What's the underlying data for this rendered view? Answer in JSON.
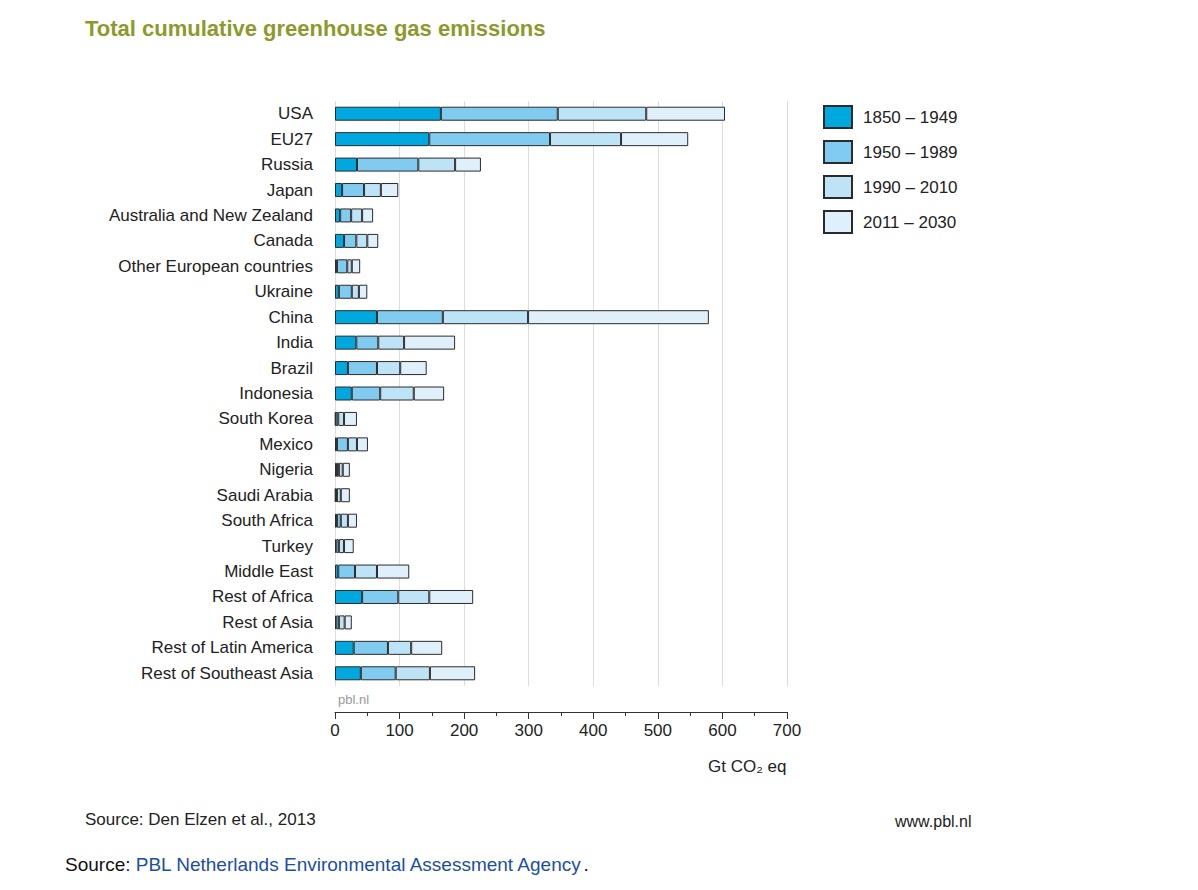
{
  "chart_data": {
    "type": "bar",
    "title": "Total cumulative greenhouse gas emissions",
    "x_label": "Gt CO₂ eq",
    "source": "Source: Den Elzen et al., 2013",
    "website": "www.pbl.nl",
    "watermark": "pbl.nl",
    "footer": {
      "prefix": "Source:",
      "link": "PBL Netherlands Environmental Assessment Agency",
      "suffix": "."
    },
    "orientation": "horizontal",
    "stacked": true,
    "grid": true,
    "legend": "right",
    "xlim": [
      0,
      700
    ],
    "xticks": [
      0,
      100,
      200,
      300,
      400,
      500,
      600,
      700
    ],
    "categories": [
      "USA",
      "EU27",
      "Russia",
      "Japan",
      "Australia and New Zealand",
      "Canada",
      "Other European countries",
      "Ukraine",
      "China",
      "India",
      "Brazil",
      "Indonesia",
      "South Korea",
      "Mexico",
      "Nigeria",
      "Saudi Arabia",
      "South Africa",
      "Turkey",
      "Middle East",
      "Rest of Africa",
      "Rest of Asia",
      "Rest of Latin America",
      "Rest of Southeast Asia"
    ],
    "series": [
      {
        "name": "1850 – 1949",
        "color": "#00a8e0",
        "values": [
          164,
          146,
          34,
          11,
          8,
          14,
          3,
          6,
          65,
          33,
          20,
          26,
          1,
          3,
          3,
          1,
          3,
          2,
          5,
          42,
          2,
          29,
          40
        ]
      },
      {
        "name": "1950 – 1989",
        "color": "#80cbef",
        "values": [
          181,
          187,
          95,
          34,
          17,
          19,
          16,
          20,
          102,
          34,
          45,
          44,
          4,
          17,
          3,
          2,
          6,
          4,
          26,
          56,
          4,
          53,
          54
        ]
      },
      {
        "name": "1990 – 2010",
        "color": "#bfe3f6",
        "values": [
          137,
          110,
          57,
          26,
          17,
          17,
          7,
          11,
          132,
          40,
          36,
          52,
          9,
          14,
          6,
          6,
          11,
          8,
          34,
          48,
          9,
          36,
          53
        ]
      },
      {
        "name": "2011 – 2030",
        "color": "#e0f0fa",
        "values": [
          122,
          104,
          40,
          27,
          17,
          17,
          13,
          13,
          280,
          79,
          41,
          47,
          20,
          17,
          11,
          14,
          14,
          15,
          50,
          68,
          11,
          48,
          70
        ]
      }
    ]
  }
}
